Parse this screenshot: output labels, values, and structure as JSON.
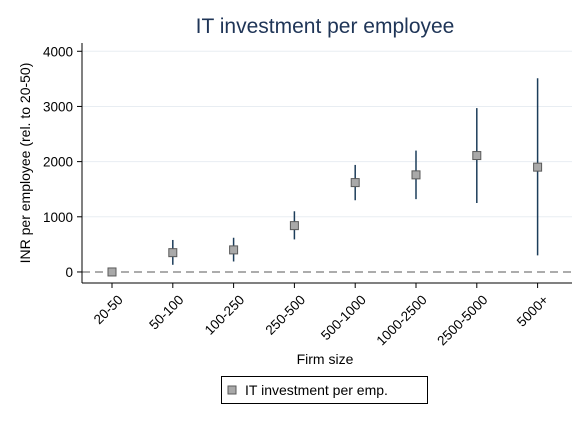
{
  "chart_data": {
    "type": "scatter",
    "title": "IT investment per employee",
    "xlabel": "Firm size",
    "ylabel": "INR per employee (rel. to 20-50)",
    "categories": [
      "20-50",
      "50-100",
      "100-250",
      "250-500",
      "500-1000",
      "1000-2500",
      "2500-5000",
      "5000+"
    ],
    "series": [
      {
        "name": "IT investment per emp.",
        "values": [
          0,
          350,
          400,
          840,
          1620,
          1760,
          2110,
          1900
        ],
        "ci_low": [
          0,
          130,
          190,
          590,
          1300,
          1320,
          1250,
          300
        ],
        "ci_high": [
          0,
          580,
          620,
          1100,
          1940,
          2200,
          2970,
          3510
        ]
      }
    ],
    "ylim": [
      -200,
      4150
    ],
    "yticks": [
      0,
      1000,
      2000,
      3000,
      4000
    ],
    "reference_line": 0,
    "grid": "horizontal",
    "legend_position": "bottom",
    "colors": {
      "title": "#1f3557",
      "marker_fill": "#a9a9a9",
      "marker_edge": "#5a5a5a",
      "errorbar": "#1c3d5a",
      "grid": "#e8edf2",
      "reference": "#7a7a7a"
    }
  }
}
